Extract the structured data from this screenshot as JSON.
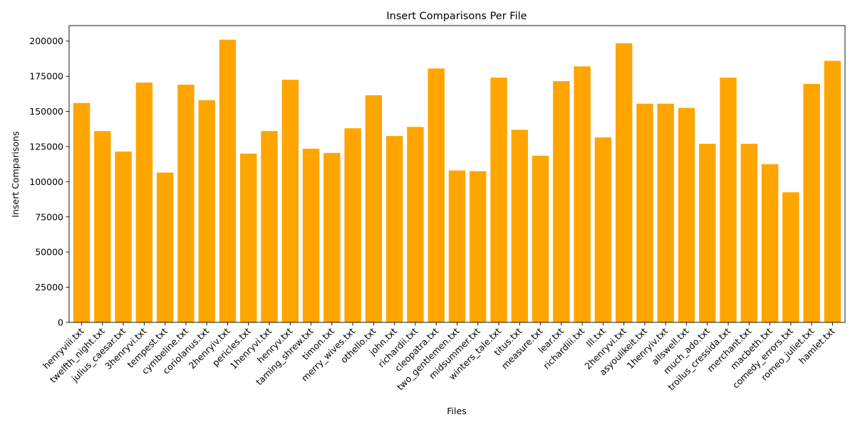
{
  "chart_data": {
    "type": "bar",
    "title": "Insert Comparisons Per File",
    "xlabel": "Files",
    "ylabel": "Insert Comparisons",
    "bar_color": "#FFA500",
    "ylim": [
      0,
      211000
    ],
    "yticks": [
      0,
      25000,
      50000,
      75000,
      100000,
      125000,
      150000,
      175000,
      200000
    ],
    "grid": false,
    "categories": [
      "henryviii.txt",
      "twelfth_night.txt",
      "julius_caesar.txt",
      "3henryvi.txt",
      "tempest.txt",
      "cymbeline.txt",
      "coriolanus.txt",
      "2henryiv.txt",
      "pericles.txt",
      "1henryvi.txt",
      "henryv.txt",
      "taming_shrew.txt",
      "timon.txt",
      "merry_wives.txt",
      "othello.txt",
      "john.txt",
      "richardii.txt",
      "cleopatra.txt",
      "two_gentlemen.txt",
      "midsummer.txt",
      "winters_tale.txt",
      "titus.txt",
      "measure.txt",
      "lear.txt",
      "richardiii.txt",
      "lll.txt",
      "2henryvi.txt",
      "asyoulikeit.txt",
      "1henryiv.txt",
      "allswell.txt",
      "much_ado.txt",
      "troilus_cressida.txt",
      "merchant.txt",
      "macbeth.txt",
      "comedy_errors.txt",
      "romeo_juliet.txt",
      "hamlet.txt"
    ],
    "values": [
      156000,
      136000,
      121500,
      170500,
      106500,
      169000,
      158000,
      201000,
      120000,
      136000,
      172500,
      123500,
      120500,
      138000,
      161500,
      132500,
      139000,
      180500,
      108000,
      107500,
      174000,
      137000,
      118500,
      171500,
      182000,
      131500,
      198500,
      155500,
      155500,
      152500,
      127000,
      174000,
      127000,
      112500,
      92500,
      169500,
      186000
    ]
  }
}
